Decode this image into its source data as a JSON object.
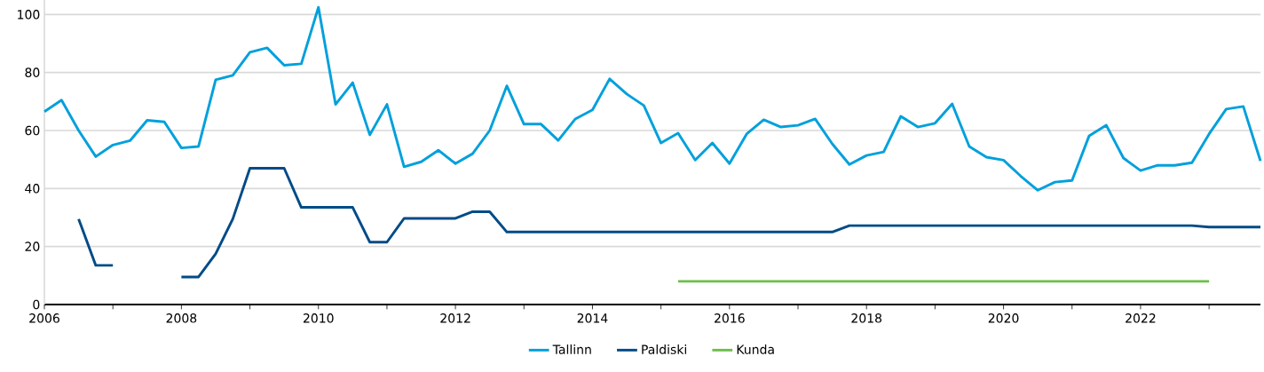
{
  "chart_data": {
    "type": "line",
    "x": [
      2006,
      2006.25,
      2006.5,
      2006.75,
      2007,
      2007.25,
      2007.5,
      2007.75,
      2008,
      2008.25,
      2008.5,
      2008.75,
      2009,
      2009.25,
      2009.5,
      2009.75,
      2010,
      2010.25,
      2010.5,
      2010.75,
      2011,
      2011.25,
      2011.5,
      2011.75,
      2012,
      2012.25,
      2012.5,
      2012.75,
      2013,
      2013.25,
      2013.5,
      2013.75,
      2014,
      2014.25,
      2014.5,
      2014.75,
      2015,
      2015.25,
      2015.5,
      2015.75,
      2016,
      2016.25,
      2016.5,
      2016.75,
      2017,
      2017.25,
      2017.5,
      2017.75,
      2018,
      2018.25,
      2018.5,
      2018.75,
      2019,
      2019.25,
      2019.5,
      2019.75,
      2020,
      2020.25,
      2020.5,
      2020.75,
      2021,
      2021.25,
      2021.5,
      2021.75,
      2022,
      2022.25,
      2022.5,
      2022.75,
      2023,
      2023.25,
      2023.5,
      2023.75
    ],
    "series": [
      {
        "name": "Tallinn",
        "color": "#00a0dc",
        "values": [
          66.5,
          70.5,
          60,
          51,
          55,
          56.5,
          63.5,
          63,
          54,
          54.5,
          77.5,
          79,
          87,
          88.5,
          82.5,
          83,
          102.5,
          69,
          76.5,
          58.5,
          69,
          47.5,
          49.2,
          53.2,
          48.6,
          52,
          60,
          75.4,
          62.2,
          62.2,
          56.6,
          64,
          67.1,
          77.8,
          72.6,
          68.6,
          55.7,
          59.1,
          49.8,
          55.7,
          48.6,
          58.8,
          63.7,
          61.2,
          61.8,
          64,
          55.4,
          48.3,
          51.4,
          52.6,
          64.9,
          61.2,
          62.5,
          69.2,
          54.5,
          50.8,
          49.8,
          44.3,
          39.4,
          42.2,
          42.8,
          58.2,
          61.8,
          50.5,
          46.2,
          48,
          48,
          48.9,
          58.8,
          67.4,
          68.3,
          49.5
        ]
      },
      {
        "name": "Paldiski",
        "color": "#004b87",
        "values": [
          null,
          null,
          29.5,
          13.5,
          13.5,
          null,
          null,
          null,
          9.5,
          9.5,
          17.5,
          29.5,
          47,
          47,
          47,
          33.5,
          33.5,
          33.5,
          33.5,
          21.5,
          21.5,
          29.7,
          29.7,
          29.7,
          29.7,
          32,
          32,
          25,
          25,
          25,
          25,
          25,
          25,
          25,
          25,
          25,
          25,
          25,
          25,
          25,
          25,
          25,
          25,
          25,
          25,
          25,
          25,
          27.2,
          27.2,
          27.2,
          27.2,
          27.2,
          27.2,
          27.2,
          27.2,
          27.2,
          27.2,
          27.2,
          27.2,
          27.2,
          27.2,
          27.2,
          27.2,
          27.2,
          27.2,
          27.2,
          27.2,
          27.2,
          26.7,
          26.7,
          26.7,
          26.7
        ]
      },
      {
        "name": "Kunda",
        "color": "#6cbf4a",
        "values": [
          null,
          null,
          null,
          null,
          null,
          null,
          null,
          null,
          null,
          null,
          null,
          null,
          null,
          null,
          null,
          null,
          null,
          null,
          null,
          null,
          null,
          null,
          null,
          null,
          null,
          null,
          null,
          null,
          null,
          null,
          null,
          null,
          null,
          null,
          null,
          null,
          null,
          8,
          8,
          8,
          8,
          8,
          8,
          8,
          8,
          8,
          8,
          8,
          8,
          8,
          8,
          8,
          8,
          8,
          8,
          8,
          8,
          8,
          8,
          8,
          8,
          8,
          8,
          8,
          8,
          8,
          8,
          8,
          8,
          null,
          null,
          null
        ]
      }
    ],
    "xlim": [
      2006,
      2023.75
    ],
    "ylim": [
      0,
      105
    ],
    "xticks": [
      2006,
      {
        "value": 2007,
        "label": null
      },
      2008,
      {
        "value": 2009,
        "label": null
      },
      2010,
      {
        "value": 2011,
        "label": null
      },
      2012,
      {
        "value": 2013,
        "label": null
      },
      2014,
      {
        "value": 2015,
        "label": null
      },
      2016,
      {
        "value": 2017,
        "label": null
      },
      2018,
      {
        "value": 2019,
        "label": null
      },
      2020,
      {
        "value": 2021,
        "label": null
      },
      2022,
      {
        "value": 2023,
        "label": null
      }
    ],
    "yticks": [
      0,
      20,
      40,
      60,
      80,
      100
    ],
    "grid": "y",
    "legend": "bottom",
    "marker": "none"
  }
}
